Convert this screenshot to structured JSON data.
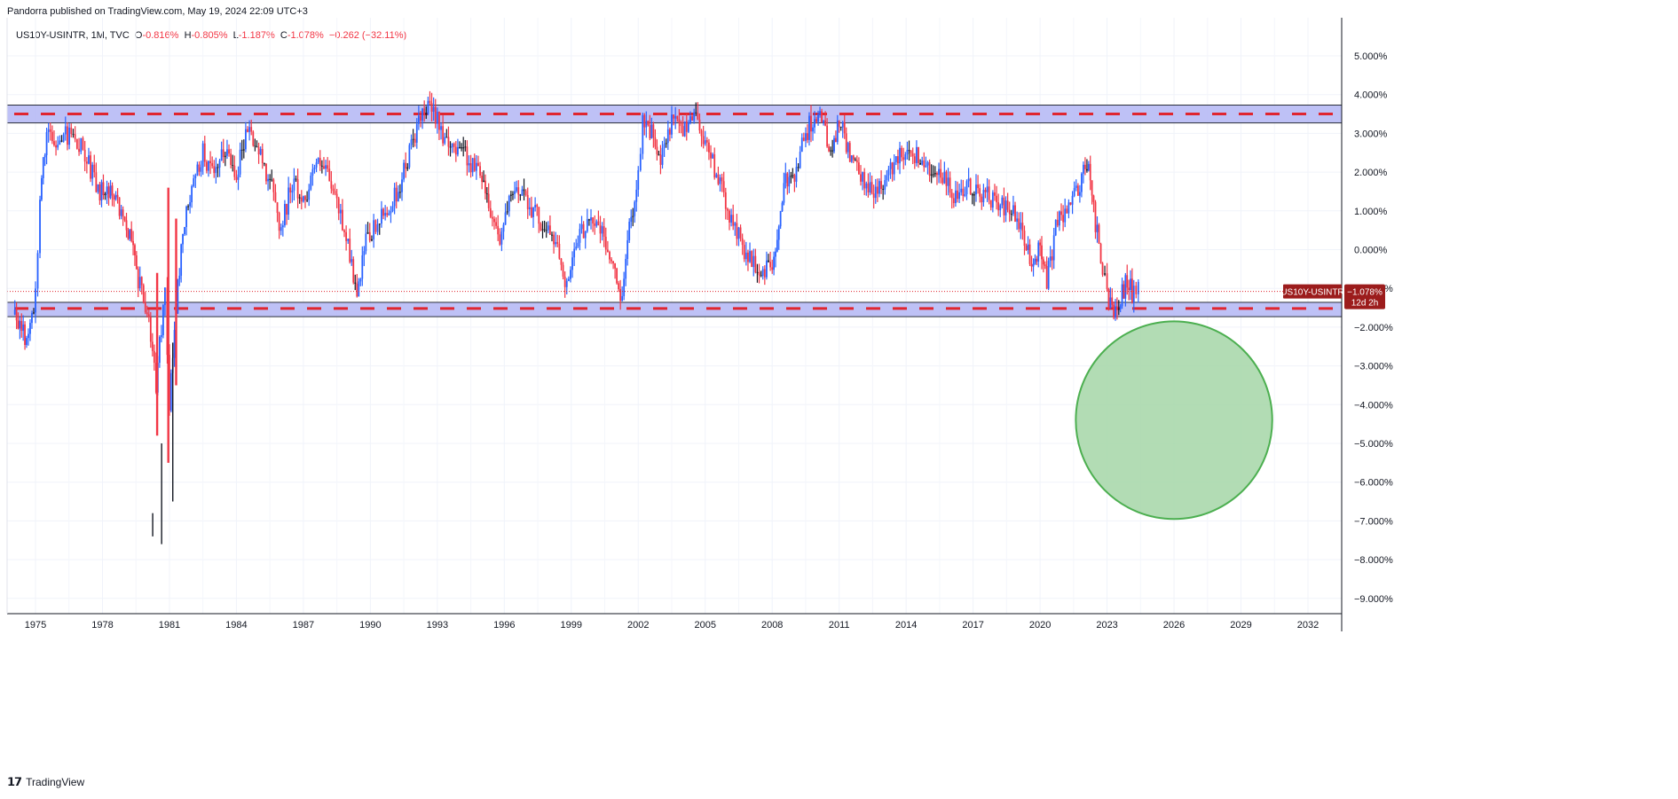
{
  "header": {
    "published": "Pandorra published on TradingView.com, May 19, 2024 22:09 UTC+3"
  },
  "legend": {
    "symbol": "US10Y-USINTR, 1M, TVC",
    "open_label": "O",
    "open_value": "-0.816%",
    "high_label": "H",
    "high_value": "-0.805%",
    "low_label": "L",
    "low_value": "-1.187%",
    "close_label": "C",
    "close_value": "-1.078%",
    "change": "−0.262 (−32.11%)"
  },
  "price_tag": {
    "symbol": "US10Y-USINTR",
    "value": "−1.078%",
    "countdown": "12d 2h"
  },
  "footer": {
    "brand": "TradingView",
    "logo_icon": "tradingview-logo-icon"
  },
  "colors": {
    "up": "#2962ff",
    "down": "#f23645",
    "neutral": "#131722",
    "zone_fill": "#b3b6f5",
    "zone_border": "#2a2e39",
    "dash": "#e0252f",
    "circle_fill": "#a5d6a7",
    "circle_stroke": "#4caf50",
    "tag_bg": "#9c1c1c"
  },
  "chart_data": {
    "type": "candlestick",
    "symbol": "US10Y-USINTR",
    "interval": "1M",
    "x_tick_labels": [
      "1975",
      "1978",
      "1981",
      "1984",
      "1987",
      "1990",
      "1993",
      "1996",
      "1999",
      "2002",
      "2005",
      "2008",
      "2011",
      "2014",
      "2017",
      "2020",
      "2023",
      "2026",
      "2029",
      "2032"
    ],
    "y_tick_labels": [
      "5.000%",
      "4.000%",
      "3.000%",
      "2.000%",
      "1.000%",
      "0.000%",
      "−1.000%",
      "−2.000%",
      "−3.000%",
      "−4.000%",
      "−5.000%",
      "−6.000%",
      "−7.000%",
      "−8.000%",
      "−9.000%"
    ],
    "y_ticks": [
      5,
      4,
      3,
      2,
      1,
      0,
      -1,
      -2,
      -3,
      -4,
      -5,
      -6,
      -7,
      -8,
      -9
    ],
    "x_range": [
      1973.7,
      2033.5
    ],
    "y_range": [
      -9.5,
      6.1
    ],
    "grid": true,
    "last_close": -1.078,
    "series_path": [
      [
        1974.0,
        -1.6
      ],
      [
        1974.3,
        -1.9
      ],
      [
        1974.6,
        -2.3
      ],
      [
        1975.0,
        -1.2
      ],
      [
        1975.2,
        1.5
      ],
      [
        1975.5,
        3.0
      ],
      [
        1976.0,
        2.8
      ],
      [
        1976.6,
        3.0
      ],
      [
        1977.3,
        2.4
      ],
      [
        1977.8,
        1.5
      ],
      [
        1978.2,
        1.6
      ],
      [
        1978.6,
        1.2
      ],
      [
        1979.0,
        0.8
      ],
      [
        1979.3,
        0.3
      ],
      [
        1979.6,
        -0.8
      ],
      [
        1980.0,
        -1.5
      ],
      [
        1980.4,
        -3.5
      ],
      [
        1980.8,
        -1.0
      ],
      [
        1981.0,
        -4.0
      ],
      [
        1981.3,
        -1.5
      ],
      [
        1981.6,
        0.5
      ],
      [
        1982.0,
        1.5
      ],
      [
        1982.5,
        2.5
      ],
      [
        1983.0,
        1.8
      ],
      [
        1983.5,
        2.6
      ],
      [
        1984.0,
        2.0
      ],
      [
        1984.5,
        3.2
      ],
      [
        1985.0,
        2.5
      ],
      [
        1985.5,
        1.8
      ],
      [
        1986.0,
        0.5
      ],
      [
        1986.5,
        1.8
      ],
      [
        1987.0,
        1.2
      ],
      [
        1987.5,
        2.2
      ],
      [
        1988.0,
        2.0
      ],
      [
        1988.5,
        1.2
      ],
      [
        1989.0,
        0.2
      ],
      [
        1989.4,
        -1.3
      ],
      [
        1989.8,
        0.2
      ],
      [
        1990.5,
        0.8
      ],
      [
        1991.0,
        1.2
      ],
      [
        1991.5,
        2.0
      ],
      [
        1992.0,
        3.0
      ],
      [
        1992.5,
        3.6
      ],
      [
        1993.0,
        3.5
      ],
      [
        1993.5,
        2.5
      ],
      [
        1994.0,
        2.8
      ],
      [
        1994.5,
        2.2
      ],
      [
        1995.0,
        2.0
      ],
      [
        1995.3,
        1.2
      ],
      [
        1995.8,
        0.3
      ],
      [
        1996.3,
        1.3
      ],
      [
        1996.8,
        1.6
      ],
      [
        1997.3,
        1.0
      ],
      [
        1997.8,
        0.6
      ],
      [
        1998.3,
        0.2
      ],
      [
        1998.8,
        -0.9
      ],
      [
        1999.3,
        0.2
      ],
      [
        1999.8,
        0.9
      ],
      [
        2000.3,
        0.5
      ],
      [
        2000.8,
        -0.3
      ],
      [
        2001.2,
        -1.3
      ],
      [
        2001.6,
        0.5
      ],
      [
        2002.0,
        2.0
      ],
      [
        2002.2,
        3.4
      ],
      [
        2002.6,
        3.0
      ],
      [
        2003.0,
        2.2
      ],
      [
        2003.5,
        3.3
      ],
      [
        2004.0,
        3.1
      ],
      [
        2004.5,
        3.6
      ],
      [
        2005.0,
        2.8
      ],
      [
        2005.5,
        2.0
      ],
      [
        2006.0,
        1.0
      ],
      [
        2006.5,
        0.3
      ],
      [
        2007.0,
        -0.3
      ],
      [
        2007.5,
        -0.6
      ],
      [
        2008.0,
        -0.4
      ],
      [
        2008.3,
        0.5
      ],
      [
        2008.6,
        1.8
      ],
      [
        2009.0,
        2.0
      ],
      [
        2009.5,
        3.0
      ],
      [
        2009.9,
        3.5
      ],
      [
        2010.3,
        3.2
      ],
      [
        2010.7,
        2.4
      ],
      [
        2011.0,
        3.3
      ],
      [
        2011.4,
        2.6
      ],
      [
        2011.8,
        2.0
      ],
      [
        2012.3,
        1.5
      ],
      [
        2012.8,
        1.6
      ],
      [
        2013.3,
        2.0
      ],
      [
        2013.8,
        2.6
      ],
      [
        2014.3,
        2.5
      ],
      [
        2014.8,
        2.3
      ],
      [
        2015.3,
        2.0
      ],
      [
        2015.8,
        1.7
      ],
      [
        2016.3,
        1.2
      ],
      [
        2016.8,
        1.6
      ],
      [
        2017.3,
        1.5
      ],
      [
        2017.8,
        1.3
      ],
      [
        2018.3,
        1.1
      ],
      [
        2018.8,
        0.9
      ],
      [
        2019.3,
        0.2
      ],
      [
        2019.7,
        -0.5
      ],
      [
        2020.0,
        0.2
      ],
      [
        2020.3,
        -0.8
      ],
      [
        2020.7,
        0.5
      ],
      [
        2021.2,
        1.2
      ],
      [
        2021.7,
        1.5
      ],
      [
        2022.1,
        2.3
      ],
      [
        2022.4,
        1.0
      ],
      [
        2022.8,
        -0.5
      ],
      [
        2023.0,
        -1.2
      ],
      [
        2023.3,
        -1.5
      ],
      [
        2023.6,
        -1.2
      ],
      [
        2023.9,
        -0.8
      ],
      [
        2024.2,
        -1.2
      ],
      [
        2024.4,
        -0.82
      ]
    ],
    "spikes": [
      [
        1980.25,
        -7.4,
        -6.8
      ],
      [
        1980.45,
        -4.8,
        -0.6
      ],
      [
        1980.65,
        -7.6,
        -5.0
      ],
      [
        1980.95,
        -5.5,
        1.6
      ],
      [
        1981.15,
        -6.5,
        -2.4
      ],
      [
        1981.3,
        -3.5,
        0.8
      ]
    ],
    "annotations": {
      "top_zone": [
        3.27,
        3.73
      ],
      "top_dash": 3.5,
      "bottom_zone": [
        -1.73,
        -1.36
      ],
      "bottom_dash": -1.52,
      "circle": {
        "center_year": 2026.0,
        "center_value": -4.4,
        "radius_years": 4.4,
        "radius_value": 2.55
      }
    }
  }
}
